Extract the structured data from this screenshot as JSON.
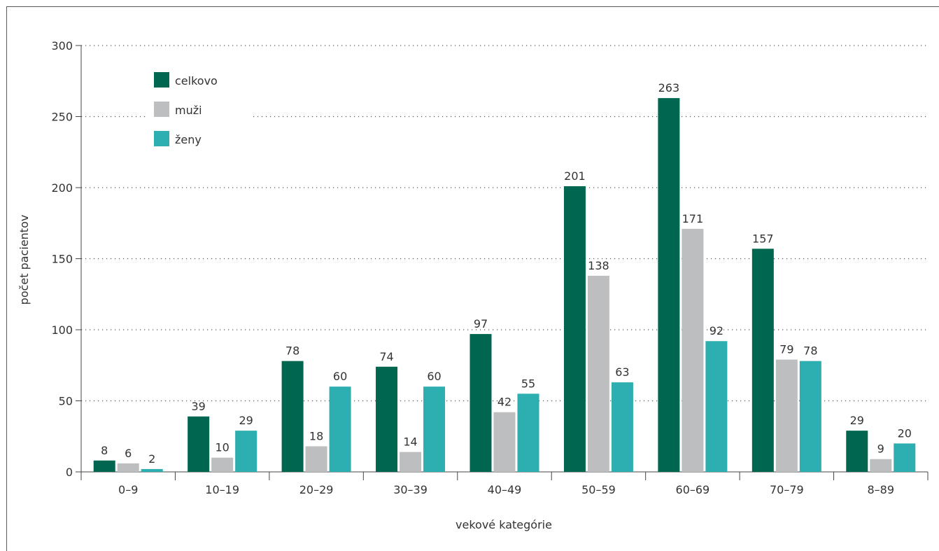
{
  "chart_data": {
    "type": "bar",
    "title": "",
    "xlabel": "vekové kategórie",
    "ylabel": "počet pacientov",
    "ylim": [
      0,
      300
    ],
    "yticks": [
      0,
      50,
      100,
      150,
      200,
      250,
      300
    ],
    "grid": "horizontal-dotted",
    "legend_position": "top-left",
    "categories": [
      "0–9",
      "10–19",
      "20–29",
      "30–39",
      "40–49",
      "50–59",
      "60–69",
      "70–79",
      "8–89"
    ],
    "series": [
      {
        "name": "celkovo",
        "color": "#00664f",
        "values": [
          8,
          39,
          78,
          74,
          97,
          201,
          263,
          157,
          29
        ]
      },
      {
        "name": "muži",
        "color": "#bcbec0",
        "values": [
          6,
          10,
          18,
          14,
          42,
          138,
          171,
          79,
          9
        ]
      },
      {
        "name": "ženy",
        "color": "#2daeb0",
        "values": [
          2,
          29,
          60,
          60,
          55,
          63,
          92,
          78,
          20
        ]
      }
    ]
  }
}
